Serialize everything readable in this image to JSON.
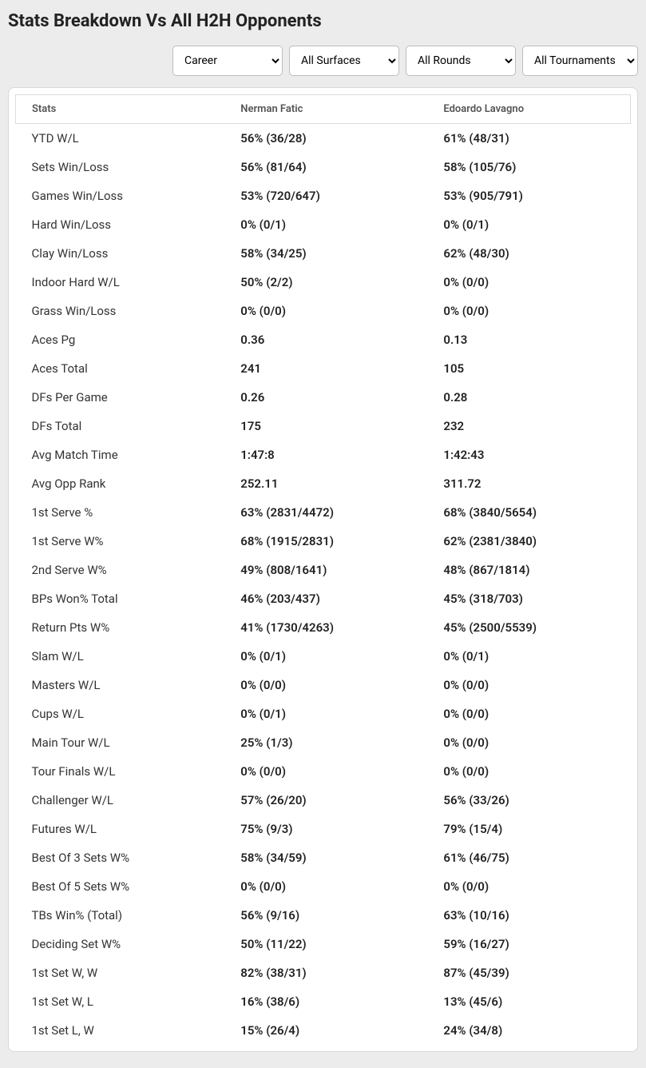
{
  "title": "Stats Breakdown Vs All H2H Opponents",
  "filters": {
    "period": "Career",
    "surface": "All Surfaces",
    "round": "All Rounds",
    "tournament": "All Tournaments"
  },
  "table": {
    "columns": [
      "Stats",
      "Nerman Fatic",
      "Edoardo Lavagno"
    ],
    "rows": [
      [
        "YTD W/L",
        "56% (36/28)",
        "61% (48/31)"
      ],
      [
        "Sets Win/Loss",
        "56% (81/64)",
        "58% (105/76)"
      ],
      [
        "Games Win/Loss",
        "53% (720/647)",
        "53% (905/791)"
      ],
      [
        "Hard Win/Loss",
        "0% (0/1)",
        "0% (0/1)"
      ],
      [
        "Clay Win/Loss",
        "58% (34/25)",
        "62% (48/30)"
      ],
      [
        "Indoor Hard W/L",
        "50% (2/2)",
        "0% (0/0)"
      ],
      [
        "Grass Win/Loss",
        "0% (0/0)",
        "0% (0/0)"
      ],
      [
        "Aces Pg",
        "0.36",
        "0.13"
      ],
      [
        "Aces Total",
        "241",
        "105"
      ],
      [
        "DFs Per Game",
        "0.26",
        "0.28"
      ],
      [
        "DFs Total",
        "175",
        "232"
      ],
      [
        "Avg Match Time",
        "1:47:8",
        "1:42:43"
      ],
      [
        "Avg Opp Rank",
        "252.11",
        "311.72"
      ],
      [
        "1st Serve %",
        "63% (2831/4472)",
        "68% (3840/5654)"
      ],
      [
        "1st Serve W%",
        "68% (1915/2831)",
        "62% (2381/3840)"
      ],
      [
        "2nd Serve W%",
        "49% (808/1641)",
        "48% (867/1814)"
      ],
      [
        "BPs Won% Total",
        "46% (203/437)",
        "45% (318/703)"
      ],
      [
        "Return Pts W%",
        "41% (1730/4263)",
        "45% (2500/5539)"
      ],
      [
        "Slam W/L",
        "0% (0/1)",
        "0% (0/1)"
      ],
      [
        "Masters W/L",
        "0% (0/0)",
        "0% (0/0)"
      ],
      [
        "Cups W/L",
        "0% (0/1)",
        "0% (0/0)"
      ],
      [
        "Main Tour W/L",
        "25% (1/3)",
        "0% (0/0)"
      ],
      [
        "Tour Finals W/L",
        "0% (0/0)",
        "0% (0/0)"
      ],
      [
        "Challenger W/L",
        "57% (26/20)",
        "56% (33/26)"
      ],
      [
        "Futures W/L",
        "75% (9/3)",
        "79% (15/4)"
      ],
      [
        "Best Of 3 Sets W%",
        "58% (34/59)",
        "61% (46/75)"
      ],
      [
        "Best Of 5 Sets W%",
        "0% (0/0)",
        "0% (0/0)"
      ],
      [
        "TBs Win% (Total)",
        "56% (9/16)",
        "63% (10/16)"
      ],
      [
        "Deciding Set W%",
        "50% (11/22)",
        "59% (16/27)"
      ],
      [
        "1st Set W, W",
        "82% (38/31)",
        "87% (45/39)"
      ],
      [
        "1st Set W, L",
        "16% (38/6)",
        "13% (45/6)"
      ],
      [
        "1st Set L, W",
        "15% (26/4)",
        "24% (34/8)"
      ]
    ]
  }
}
